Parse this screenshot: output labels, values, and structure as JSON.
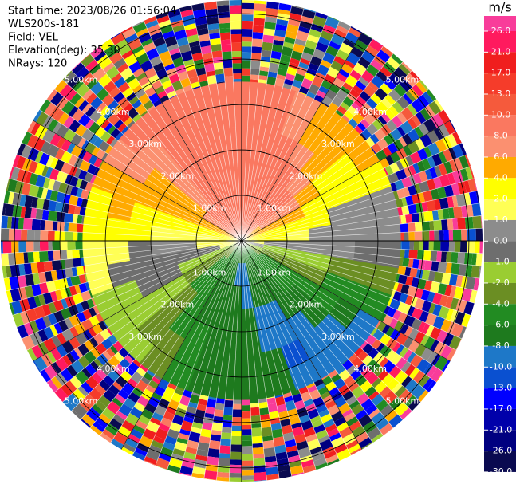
{
  "chart_data": {
    "type": "ppi",
    "header": [
      "Start time: 2023/08/26 01:56:04",
      "WLS200s-181",
      "Field: VEL",
      "Elevation(deg): 35.30",
      "NRays: 120"
    ],
    "rlim": [
      0,
      5.3
    ],
    "range_rings": [
      {
        "value": 1,
        "label": "1.00km"
      },
      {
        "value": 2,
        "label": "2.00km"
      },
      {
        "value": 3,
        "label": "3.00km"
      },
      {
        "value": 4,
        "label": "4.00km"
      },
      {
        "value": 5,
        "label": "5.00km"
      }
    ],
    "azimuths": [
      0,
      10,
      20,
      30,
      40,
      50,
      60,
      70,
      80,
      90,
      100,
      110,
      120,
      130,
      140,
      150,
      160,
      170,
      180,
      190,
      200,
      210,
      220,
      230,
      240,
      250,
      260,
      270,
      280,
      290,
      300,
      310,
      320,
      330,
      340,
      350
    ],
    "ranges_km": [
      0,
      0.5,
      1,
      1.5,
      2,
      2.5,
      3,
      3.5
    ],
    "field": [
      [
        9,
        9,
        9,
        9,
        9,
        9,
        9
      ],
      [
        9,
        9,
        9,
        9,
        9,
        9,
        9
      ],
      [
        9,
        9,
        9,
        9,
        9,
        7,
        7
      ],
      [
        8,
        9,
        9,
        9,
        7,
        5,
        5
      ],
      [
        7,
        9,
        9,
        7,
        5,
        5,
        5
      ],
      [
        5,
        7,
        7,
        5,
        3,
        3,
        5
      ],
      [
        5,
        5,
        5,
        3,
        3,
        3,
        3
      ],
      [
        3,
        3,
        3,
        3,
        0.5,
        0.5,
        0.5
      ],
      [
        3,
        3,
        1.5,
        0.5,
        0.5,
        0.5,
        0.5
      ],
      [
        1.5,
        0.5,
        0.5,
        0.5,
        0.5,
        -0.5,
        -0.5
      ],
      [
        0.5,
        -1.5,
        -1.5,
        -1.5,
        -3,
        -3,
        -3
      ],
      [
        -1.5,
        -3,
        -3,
        -3,
        -5,
        -5,
        -5
      ],
      [
        -3,
        -5,
        -5,
        -5,
        -5,
        -7,
        -9
      ],
      [
        -5,
        -5,
        -5,
        -7,
        -7,
        -9,
        -9
      ],
      [
        -5,
        -5,
        -7,
        -7,
        -9,
        -9,
        -9
      ],
      [
        -5,
        -7,
        -7,
        -9,
        -9,
        -11,
        -9
      ],
      [
        -7,
        -7,
        -7,
        -9,
        -9,
        -7,
        -7
      ],
      [
        -7,
        -9,
        -9,
        -7,
        -7,
        -7,
        -7
      ],
      [
        -7,
        -9,
        -7,
        -7,
        -7,
        -7,
        -7
      ],
      [
        -7,
        -7,
        -7,
        -7,
        -7,
        -7,
        -7
      ],
      [
        -5,
        -7,
        -7,
        -7,
        -5,
        -5,
        -5
      ],
      [
        -5,
        -5,
        -5,
        -5,
        -5,
        -3,
        -3
      ],
      [
        -3,
        -5,
        -5,
        -3,
        -3,
        -3,
        -1.5
      ],
      [
        -3,
        -3,
        -3,
        -1.5,
        -1.5,
        -1.5,
        -1.5
      ],
      [
        -1.5,
        -1.5,
        -1.5,
        -0.5,
        -0.5,
        -1.5,
        -1.5
      ],
      [
        1.5,
        -0.5,
        -0.5,
        -0.5,
        -0.5,
        -0.5,
        1.5
      ],
      [
        1.5,
        1.5,
        0.5,
        0.5,
        -0.5,
        1.5,
        1.5
      ],
      [
        3,
        1.5,
        1.5,
        1.5,
        3,
        3,
        3
      ],
      [
        3,
        3,
        3,
        3,
        3,
        5,
        3
      ],
      [
        5,
        5,
        5,
        5,
        5,
        5,
        5
      ],
      [
        7,
        7,
        5,
        5,
        5,
        7,
        7
      ],
      [
        9,
        9,
        7,
        7,
        7,
        7,
        9
      ],
      [
        9,
        9,
        9,
        9,
        9,
        9,
        9
      ],
      [
        9,
        9,
        9,
        9,
        9,
        9,
        9
      ],
      [
        9,
        9,
        9,
        9,
        9,
        9,
        9
      ],
      [
        9,
        9,
        9,
        9,
        9,
        9,
        9
      ]
    ],
    "colorbar": {
      "title": "m/s",
      "ticks": [
        {
          "value": 26,
          "label": "26.0"
        },
        {
          "value": 21,
          "label": "21.0"
        },
        {
          "value": 17,
          "label": "17.0"
        },
        {
          "value": 13,
          "label": "13.0"
        },
        {
          "value": 10,
          "label": "10.0"
        },
        {
          "value": 8,
          "label": "8.0"
        },
        {
          "value": 6,
          "label": "6.0"
        },
        {
          "value": 4,
          "label": "4.0"
        },
        {
          "value": 2,
          "label": "2.0"
        },
        {
          "value": 1,
          "label": "1.0"
        },
        {
          "value": 0,
          "label": "0.0"
        },
        {
          "value": -1,
          "label": "-1.0"
        },
        {
          "value": -2,
          "label": "-2.0"
        },
        {
          "value": -4,
          "label": "-4.0"
        },
        {
          "value": -6,
          "label": "-6.0"
        },
        {
          "value": -8,
          "label": "-8.0"
        },
        {
          "value": -10,
          "label": "-10.0"
        },
        {
          "value": -13,
          "label": "-13.0"
        },
        {
          "value": -17,
          "label": "-17.0"
        },
        {
          "value": -21,
          "label": "-21.0"
        },
        {
          "value": -26,
          "label": "-26.0"
        },
        {
          "value": -30,
          "label": "-30.0"
        }
      ],
      "colors": [
        "#f83c9a",
        "#ff1a5e",
        "#f01e1e",
        "#f53c2a",
        "#f55a3c",
        "#fa7860",
        "#fb9070",
        "#ffaa00",
        "#ffff00",
        "#ffff55",
        "#8c8c8c",
        "#6e6e6e",
        "#9acd32",
        "#6b8e23",
        "#228b22",
        "#1e7a1e",
        "#1e78c8",
        "#0a50d0",
        "#0000ff",
        "#0000aa",
        "#000080",
        "#0a0a50"
      ]
    }
  }
}
